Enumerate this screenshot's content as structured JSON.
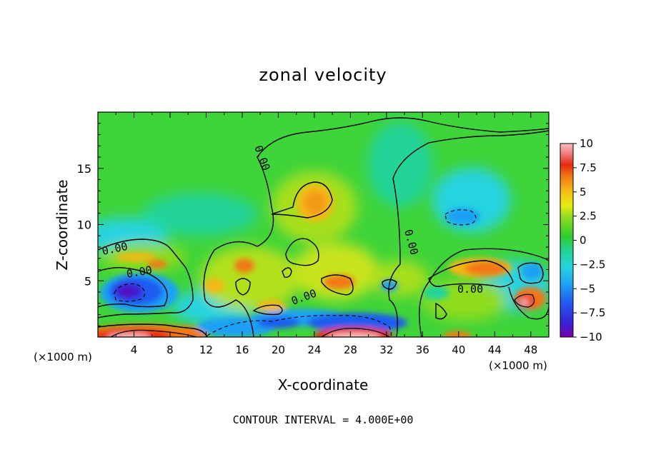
{
  "chart_data": {
    "type": "heatmap",
    "title": "zonal velocity",
    "xlabel": "X-coordinate",
    "ylabel": "Z-coordinate",
    "x_unit_label": "(×1000 m)",
    "x_unit_label_right": "(×1000 m)",
    "xlim": [
      0,
      50
    ],
    "ylim": [
      0,
      20
    ],
    "xticks": [
      "4",
      "8",
      "12",
      "16",
      "20",
      "24",
      "28",
      "32",
      "36",
      "40",
      "44",
      "48"
    ],
    "yticks": [
      "5",
      "10",
      "15"
    ],
    "colorbar": {
      "ticks": [
        "10",
        "7.5",
        "5",
        "2.5",
        "0",
        "-2.5",
        "-5",
        "-7.5",
        "-10"
      ],
      "range": [
        -10,
        10
      ],
      "colors": [
        "#7a00a8",
        "#3a1fd6",
        "#1f5cf0",
        "#1ea0f5",
        "#25d3e0",
        "#20d49a",
        "#2ecc2e",
        "#8fdc1e",
        "#e8ea10",
        "#f5b818",
        "#f27814",
        "#e82a10",
        "#f08080",
        "#f7c0c0"
      ]
    },
    "contour_labels": [
      "0.00",
      "0.00",
      "0.00",
      "0.00",
      "0.00",
      "0.00"
    ],
    "footer": "CONTOUR INTERVAL = 4.000E+00",
    "features": [
      {
        "x": 3.5,
        "z": 3.8,
        "value": -9,
        "desc": "strong easterly core"
      },
      {
        "x": 3.5,
        "z": 0.4,
        "value": 9,
        "desc": "strong westerly near surface"
      },
      {
        "x": 26,
        "z": 0.4,
        "value": 9,
        "desc": "strong westerly near surface"
      },
      {
        "x": 24.5,
        "z": 12,
        "value": 5,
        "desc": "positive maximum"
      },
      {
        "x": 41,
        "z": 10.8,
        "value": -3.5,
        "desc": "negative minimum"
      },
      {
        "x": 44,
        "z": 6,
        "value": 6,
        "desc": "positive maximum"
      },
      {
        "x": 47.5,
        "z": 3.2,
        "value": 9,
        "desc": "strong positive core"
      },
      {
        "x": 28,
        "z": 5,
        "value": 6,
        "desc": "positive maximum"
      },
      {
        "x": 31,
        "z": 1.5,
        "value": -7,
        "desc": "negative region"
      }
    ]
  }
}
